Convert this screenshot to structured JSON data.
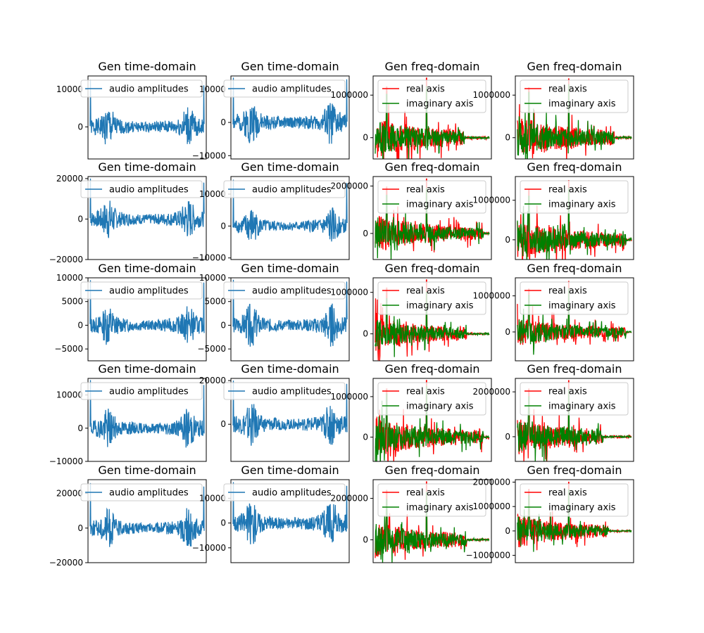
{
  "colors": {
    "audio": "#1f77b4",
    "real": "#ff0000",
    "imag": "#008000",
    "axes": "#000000"
  },
  "chart_data": [
    {
      "type": "line",
      "title": "Gen time-domain",
      "legend": [
        "audio amplitudes"
      ],
      "legend_placement": "top",
      "xticks": [],
      "yticks": [
        {
          "v": 10000,
          "label": "10000"
        },
        {
          "v": 0,
          "label": "0"
        }
      ],
      "ylim": [
        -8500,
        13500
      ],
      "series": [
        {
          "name": "audio amplitudes",
          "kind": "time",
          "seed": 1,
          "amp": 6500,
          "spikes": [
            12500,
            11000
          ]
        }
      ]
    },
    {
      "type": "line",
      "title": "Gen time-domain",
      "legend": [
        "audio amplitudes"
      ],
      "legend_placement": "top",
      "xticks": [],
      "yticks": [
        {
          "v": 10000,
          "label": "10000"
        },
        {
          "v": 0,
          "label": "0"
        },
        {
          "v": -10000,
          "label": "−10000"
        }
      ],
      "ylim": [
        -11000,
        14000
      ],
      "series": [
        {
          "name": "audio amplitudes",
          "kind": "time",
          "seed": 2,
          "amp": 8000,
          "spikes": [
            13500,
            13000
          ]
        }
      ]
    },
    {
      "type": "line",
      "title": "Gen freq-domain",
      "legend": [
        "real axis",
        "imaginary axis"
      ],
      "legend_placement": "top-left",
      "xticks": [],
      "yticks": [
        {
          "v": 1000000,
          "label": "1000000"
        },
        {
          "v": 0,
          "label": "0"
        }
      ],
      "ylim": [
        -500000,
        1450000
      ],
      "series": [
        {
          "name": "real axis",
          "kind": "freq",
          "seed": 3,
          "amp": 500000,
          "peak": 1400000,
          "extent": 0.78
        },
        {
          "name": "imaginary axis",
          "kind": "freq",
          "seed": 4,
          "amp": 420000,
          "peak": 1200000,
          "extent": 0.78
        }
      ]
    },
    {
      "type": "line",
      "title": "Gen freq-domain",
      "legend": [
        "real axis",
        "imaginary axis"
      ],
      "legend_placement": "top-left",
      "xticks": [],
      "yticks": [
        {
          "v": 1000000,
          "label": "1000000"
        },
        {
          "v": 0,
          "label": "0"
        }
      ],
      "ylim": [
        -500000,
        1450000
      ],
      "series": [
        {
          "name": "real axis",
          "kind": "freq",
          "seed": 5,
          "amp": 520000,
          "peak": 1380000,
          "extent": 0.85
        },
        {
          "name": "imaginary axis",
          "kind": "freq",
          "seed": 6,
          "amp": 440000,
          "peak": 1250000,
          "extent": 0.85
        }
      ]
    },
    {
      "type": "line",
      "title": "Gen time-domain",
      "legend": [
        "audio amplitudes"
      ],
      "legend_placement": "top",
      "xticks": [],
      "yticks": [
        {
          "v": 20000,
          "label": "20000"
        },
        {
          "v": 0,
          "label": "0"
        },
        {
          "v": -20000,
          "label": "−20000"
        }
      ],
      "ylim": [
        -20000,
        21000
      ],
      "series": [
        {
          "name": "audio amplitudes",
          "kind": "time",
          "seed": 7,
          "amp": 12000,
          "spikes": [
            20000,
            18000
          ]
        }
      ]
    },
    {
      "type": "line",
      "title": "Gen time-domain",
      "legend": [
        "audio amplitudes"
      ],
      "legend_placement": "top",
      "xticks": [],
      "yticks": [
        {
          "v": 10000,
          "label": "10000"
        },
        {
          "v": 0,
          "label": "0"
        },
        {
          "v": -10000,
          "label": "−10000"
        }
      ],
      "ylim": [
        -10500,
        15500
      ],
      "series": [
        {
          "name": "audio amplitudes",
          "kind": "time",
          "seed": 8,
          "amp": 7000,
          "spikes": [
            14500,
            13500
          ]
        }
      ]
    },
    {
      "type": "line",
      "title": "Gen freq-domain",
      "legend": [
        "real axis",
        "imaginary axis"
      ],
      "legend_placement": "top-left",
      "xticks": [],
      "yticks": [
        {
          "v": 2000000,
          "label": "2000000"
        },
        {
          "v": 0,
          "label": "0"
        }
      ],
      "ylim": [
        -1100000,
        2400000
      ],
      "series": [
        {
          "name": "real axis",
          "kind": "freq",
          "seed": 9,
          "amp": 800000,
          "peak": 2300000,
          "extent": 0.95
        },
        {
          "name": "imaginary axis",
          "kind": "freq",
          "seed": 10,
          "amp": 700000,
          "peak": 1900000,
          "extent": 0.95
        }
      ]
    },
    {
      "type": "line",
      "title": "Gen freq-domain",
      "legend": [
        "real axis",
        "imaginary axis"
      ],
      "legend_placement": "top-left",
      "xticks": [],
      "yticks": [
        {
          "v": 1000000,
          "label": "1000000"
        },
        {
          "v": 0,
          "label": "0"
        }
      ],
      "ylim": [
        -500000,
        1600000
      ],
      "series": [
        {
          "name": "real axis",
          "kind": "freq",
          "seed": 11,
          "amp": 550000,
          "peak": 1500000,
          "extent": 0.95
        },
        {
          "name": "imaginary axis",
          "kind": "freq",
          "seed": 12,
          "amp": 460000,
          "peak": 1300000,
          "extent": 0.95
        }
      ]
    },
    {
      "type": "line",
      "title": "Gen time-domain",
      "legend": [
        "audio amplitudes"
      ],
      "legend_placement": "top",
      "xticks": [],
      "yticks": [
        {
          "v": 10000,
          "label": "10000"
        },
        {
          "v": 5000,
          "label": "5000"
        },
        {
          "v": 0,
          "label": "0"
        },
        {
          "v": -5000,
          "label": "−5000"
        }
      ],
      "ylim": [
        -7500,
        10000
      ],
      "series": [
        {
          "name": "audio amplitudes",
          "kind": "time",
          "seed": 13,
          "amp": 5200,
          "spikes": [
            9500,
            9000
          ]
        }
      ]
    },
    {
      "type": "line",
      "title": "Gen time-domain",
      "legend": [
        "audio amplitudes"
      ],
      "legend_placement": "top",
      "xticks": [],
      "yticks": [
        {
          "v": 10000,
          "label": "10000"
        },
        {
          "v": 5000,
          "label": "5000"
        },
        {
          "v": 0,
          "label": "0"
        },
        {
          "v": -5000,
          "label": "−5000"
        }
      ],
      "ylim": [
        -7500,
        10000
      ],
      "series": [
        {
          "name": "audio amplitudes",
          "kind": "time",
          "seed": 14,
          "amp": 5400,
          "spikes": [
            9600,
            9200
          ]
        }
      ]
    },
    {
      "type": "line",
      "title": "Gen freq-domain",
      "legend": [
        "real axis",
        "imaginary axis"
      ],
      "legend_placement": "top-left",
      "xticks": [],
      "yticks": [
        {
          "v": 1000000,
          "label": "1000000"
        },
        {
          "v": 0,
          "label": "0"
        }
      ],
      "ylim": [
        -650000,
        1350000
      ],
      "series": [
        {
          "name": "real axis",
          "kind": "freq",
          "seed": 15,
          "amp": 420000,
          "peak": 1300000,
          "extent": 0.8
        },
        {
          "name": "imaginary axis",
          "kind": "freq",
          "seed": 16,
          "amp": 360000,
          "peak": 1000000,
          "extent": 0.8
        }
      ]
    },
    {
      "type": "line",
      "title": "Gen freq-domain",
      "legend": [
        "real axis",
        "imaginary axis"
      ],
      "legend_placement": "top-left",
      "xticks": [],
      "yticks": [
        {
          "v": 1000000,
          "label": "1000000"
        },
        {
          "v": 0,
          "label": "0"
        }
      ],
      "ylim": [
        -800000,
        1500000
      ],
      "series": [
        {
          "name": "real axis",
          "kind": "freq",
          "seed": 17,
          "amp": 420000,
          "peak": 1400000,
          "extent": 0.95
        },
        {
          "name": "imaginary axis",
          "kind": "freq",
          "seed": 18,
          "amp": 380000,
          "peak": 1200000,
          "extent": 0.95
        }
      ]
    },
    {
      "type": "line",
      "title": "Gen time-domain",
      "legend": [
        "audio amplitudes"
      ],
      "legend_placement": "top",
      "xticks": [],
      "yticks": [
        {
          "v": 10000,
          "label": "10000"
        },
        {
          "v": 0,
          "label": "0"
        },
        {
          "v": -10000,
          "label": "−10000"
        }
      ],
      "ylim": [
        -10000,
        15000
      ],
      "series": [
        {
          "name": "audio amplitudes",
          "kind": "time",
          "seed": 19,
          "amp": 7500,
          "spikes": [
            14500,
            13000
          ]
        }
      ]
    },
    {
      "type": "line",
      "title": "Gen time-domain",
      "legend": [
        "audio amplitudes"
      ],
      "legend_placement": "top",
      "xticks": [],
      "yticks": [
        {
          "v": 20000,
          "label": "20000"
        },
        {
          "v": 0,
          "label": "0"
        }
      ],
      "ylim": [
        -17000,
        21000
      ],
      "series": [
        {
          "name": "audio amplitudes",
          "kind": "time",
          "seed": 20,
          "amp": 12000,
          "spikes": [
            20000,
            18500
          ]
        }
      ]
    },
    {
      "type": "line",
      "title": "Gen freq-domain",
      "legend": [
        "real axis",
        "imaginary axis"
      ],
      "legend_placement": "top-left",
      "xticks": [],
      "yticks": [
        {
          "v": 1000000,
          "label": "1000000"
        },
        {
          "v": 0,
          "label": "0"
        }
      ],
      "ylim": [
        -600000,
        1450000
      ],
      "series": [
        {
          "name": "real axis",
          "kind": "freq",
          "seed": 21,
          "amp": 520000,
          "peak": 1400000,
          "extent": 0.95
        },
        {
          "name": "imaginary axis",
          "kind": "freq",
          "seed": 22,
          "amp": 460000,
          "peak": 1250000,
          "extent": 0.95
        }
      ]
    },
    {
      "type": "line",
      "title": "Gen freq-domain",
      "legend": [
        "real axis",
        "imaginary axis"
      ],
      "legend_placement": "top-left",
      "xticks": [],
      "yticks": [
        {
          "v": 2000000,
          "label": "2000000"
        },
        {
          "v": 0,
          "label": "0"
        }
      ],
      "ylim": [
        -1100000,
        2600000
      ],
      "series": [
        {
          "name": "real axis",
          "kind": "freq",
          "seed": 23,
          "amp": 850000,
          "peak": 2500000,
          "extent": 0.75
        },
        {
          "name": "imaginary axis",
          "kind": "freq",
          "seed": 24,
          "amp": 750000,
          "peak": 2100000,
          "extent": 0.75
        }
      ]
    },
    {
      "type": "line",
      "title": "Gen time-domain",
      "legend": [
        "audio amplitudes"
      ],
      "legend_placement": "top",
      "xticks": [],
      "yticks": [
        {
          "v": 20000,
          "label": "20000"
        },
        {
          "v": 0,
          "label": "0"
        },
        {
          "v": -20000,
          "label": "−20000"
        }
      ],
      "ylim": [
        -20000,
        28000
      ],
      "series": [
        {
          "name": "audio amplitudes",
          "kind": "time",
          "seed": 25,
          "amp": 14000,
          "spikes": [
            26000,
            24000
          ]
        }
      ]
    },
    {
      "type": "line",
      "title": "Gen time-domain",
      "legend": [
        "audio amplitudes"
      ],
      "legend_placement": "top",
      "xticks": [],
      "yticks": [
        {
          "v": 10000,
          "label": "10000"
        },
        {
          "v": 0,
          "label": "0"
        },
        {
          "v": -10000,
          "label": "−10000"
        }
      ],
      "ylim": [
        -16000,
        17500
      ],
      "series": [
        {
          "name": "audio amplitudes",
          "kind": "time",
          "seed": 26,
          "amp": 11000,
          "spikes": [
            16500,
            15000
          ]
        }
      ]
    },
    {
      "type": "line",
      "title": "Gen freq-domain",
      "legend": [
        "real axis",
        "imaginary axis"
      ],
      "legend_placement": "top-left",
      "xticks": [],
      "yticks": [
        {
          "v": 2000000,
          "label": "2000000"
        },
        {
          "v": 0,
          "label": "0"
        }
      ],
      "ylim": [
        -1100000,
        2900000
      ],
      "series": [
        {
          "name": "real axis",
          "kind": "freq",
          "seed": 27,
          "amp": 900000,
          "peak": 2800000,
          "extent": 0.8
        },
        {
          "name": "imaginary axis",
          "kind": "freq",
          "seed": 28,
          "amp": 800000,
          "peak": 2300000,
          "extent": 0.8
        }
      ]
    },
    {
      "type": "line",
      "title": "Gen freq-domain",
      "legend": [
        "real axis",
        "imaginary axis"
      ],
      "legend_placement": "top-left",
      "xticks": [],
      "yticks": [
        {
          "v": 2000000,
          "label": "2000000"
        },
        {
          "v": 1000000,
          "label": "1000000"
        },
        {
          "v": 0,
          "label": "0"
        },
        {
          "v": -1000000,
          "label": "−1000000"
        }
      ],
      "ylim": [
        -1300000,
        2100000
      ],
      "series": [
        {
          "name": "real axis",
          "kind": "freq",
          "seed": 29,
          "amp": 700000,
          "peak": 2000000,
          "extent": 0.8
        },
        {
          "name": "imaginary axis",
          "kind": "freq",
          "seed": 30,
          "amp": 600000,
          "peak": 1700000,
          "extent": 0.8
        }
      ]
    }
  ]
}
